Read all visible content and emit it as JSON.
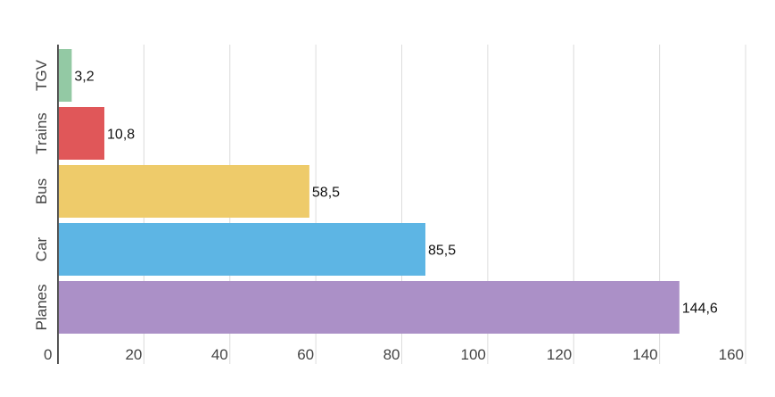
{
  "chart_data": {
    "type": "bar",
    "orientation": "horizontal",
    "categories": [
      "TGV",
      "Trains",
      "Bus",
      "Car",
      "Planes"
    ],
    "values": [
      3.2,
      10.8,
      58.5,
      85.5,
      144.6
    ],
    "data_labels": [
      "3,2",
      "10,8",
      "58,5",
      "85,5",
      "144,6"
    ],
    "colors": [
      "#93c9a4",
      "#e05759",
      "#eecb6a",
      "#5db5e4",
      "#ab90c7"
    ],
    "x_ticks": [
      0,
      20,
      40,
      60,
      80,
      100,
      120,
      140,
      160
    ],
    "xlim": [
      0,
      160
    ],
    "grid": true,
    "legend": "none",
    "title": "",
    "xlabel": "",
    "ylabel": ""
  }
}
